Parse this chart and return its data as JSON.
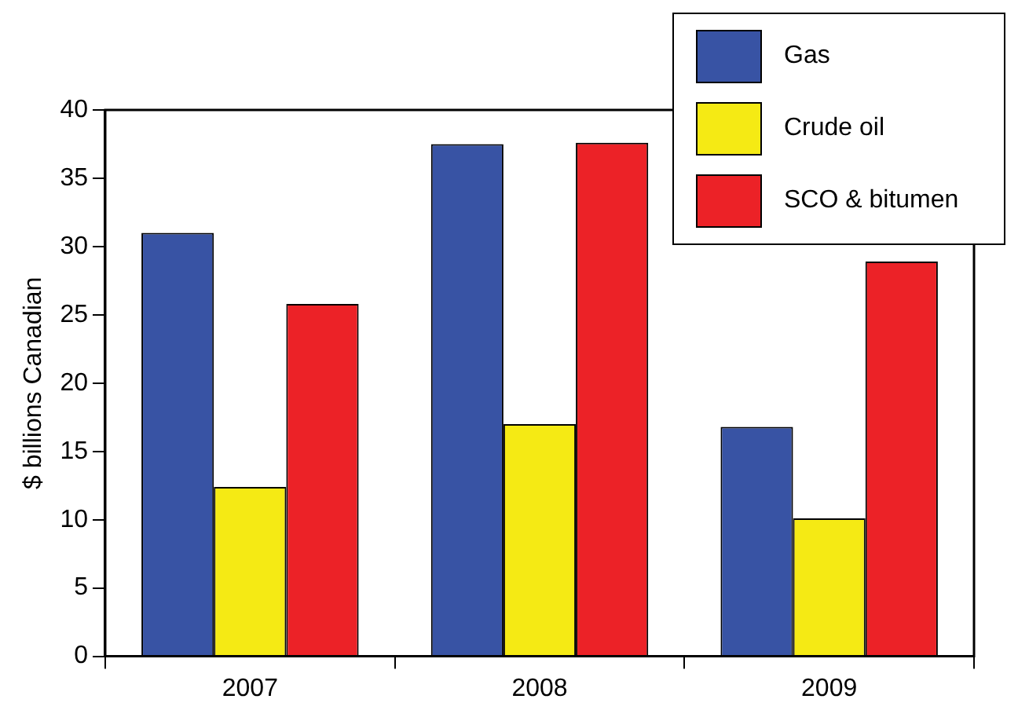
{
  "chart_data": {
    "type": "bar",
    "ylabel": "$ billions Canadian",
    "categories": [
      "2007",
      "2008",
      "2009"
    ],
    "series": [
      {
        "name": "Gas",
        "color": "#3853a4",
        "values": [
          31,
          37.5,
          16.8
        ]
      },
      {
        "name": "Crude oil",
        "color": "#f5ea14",
        "values": [
          12.4,
          17,
          10.1
        ]
      },
      {
        "name": "SCO & bitumen",
        "color": "#ec2227",
        "values": [
          25.8,
          37.6,
          28.9
        ]
      }
    ],
    "ylim": [
      0,
      40
    ],
    "yticks": [
      0,
      5,
      10,
      15,
      20,
      25,
      30,
      35,
      40
    ],
    "grid": false,
    "legend": "top right"
  }
}
